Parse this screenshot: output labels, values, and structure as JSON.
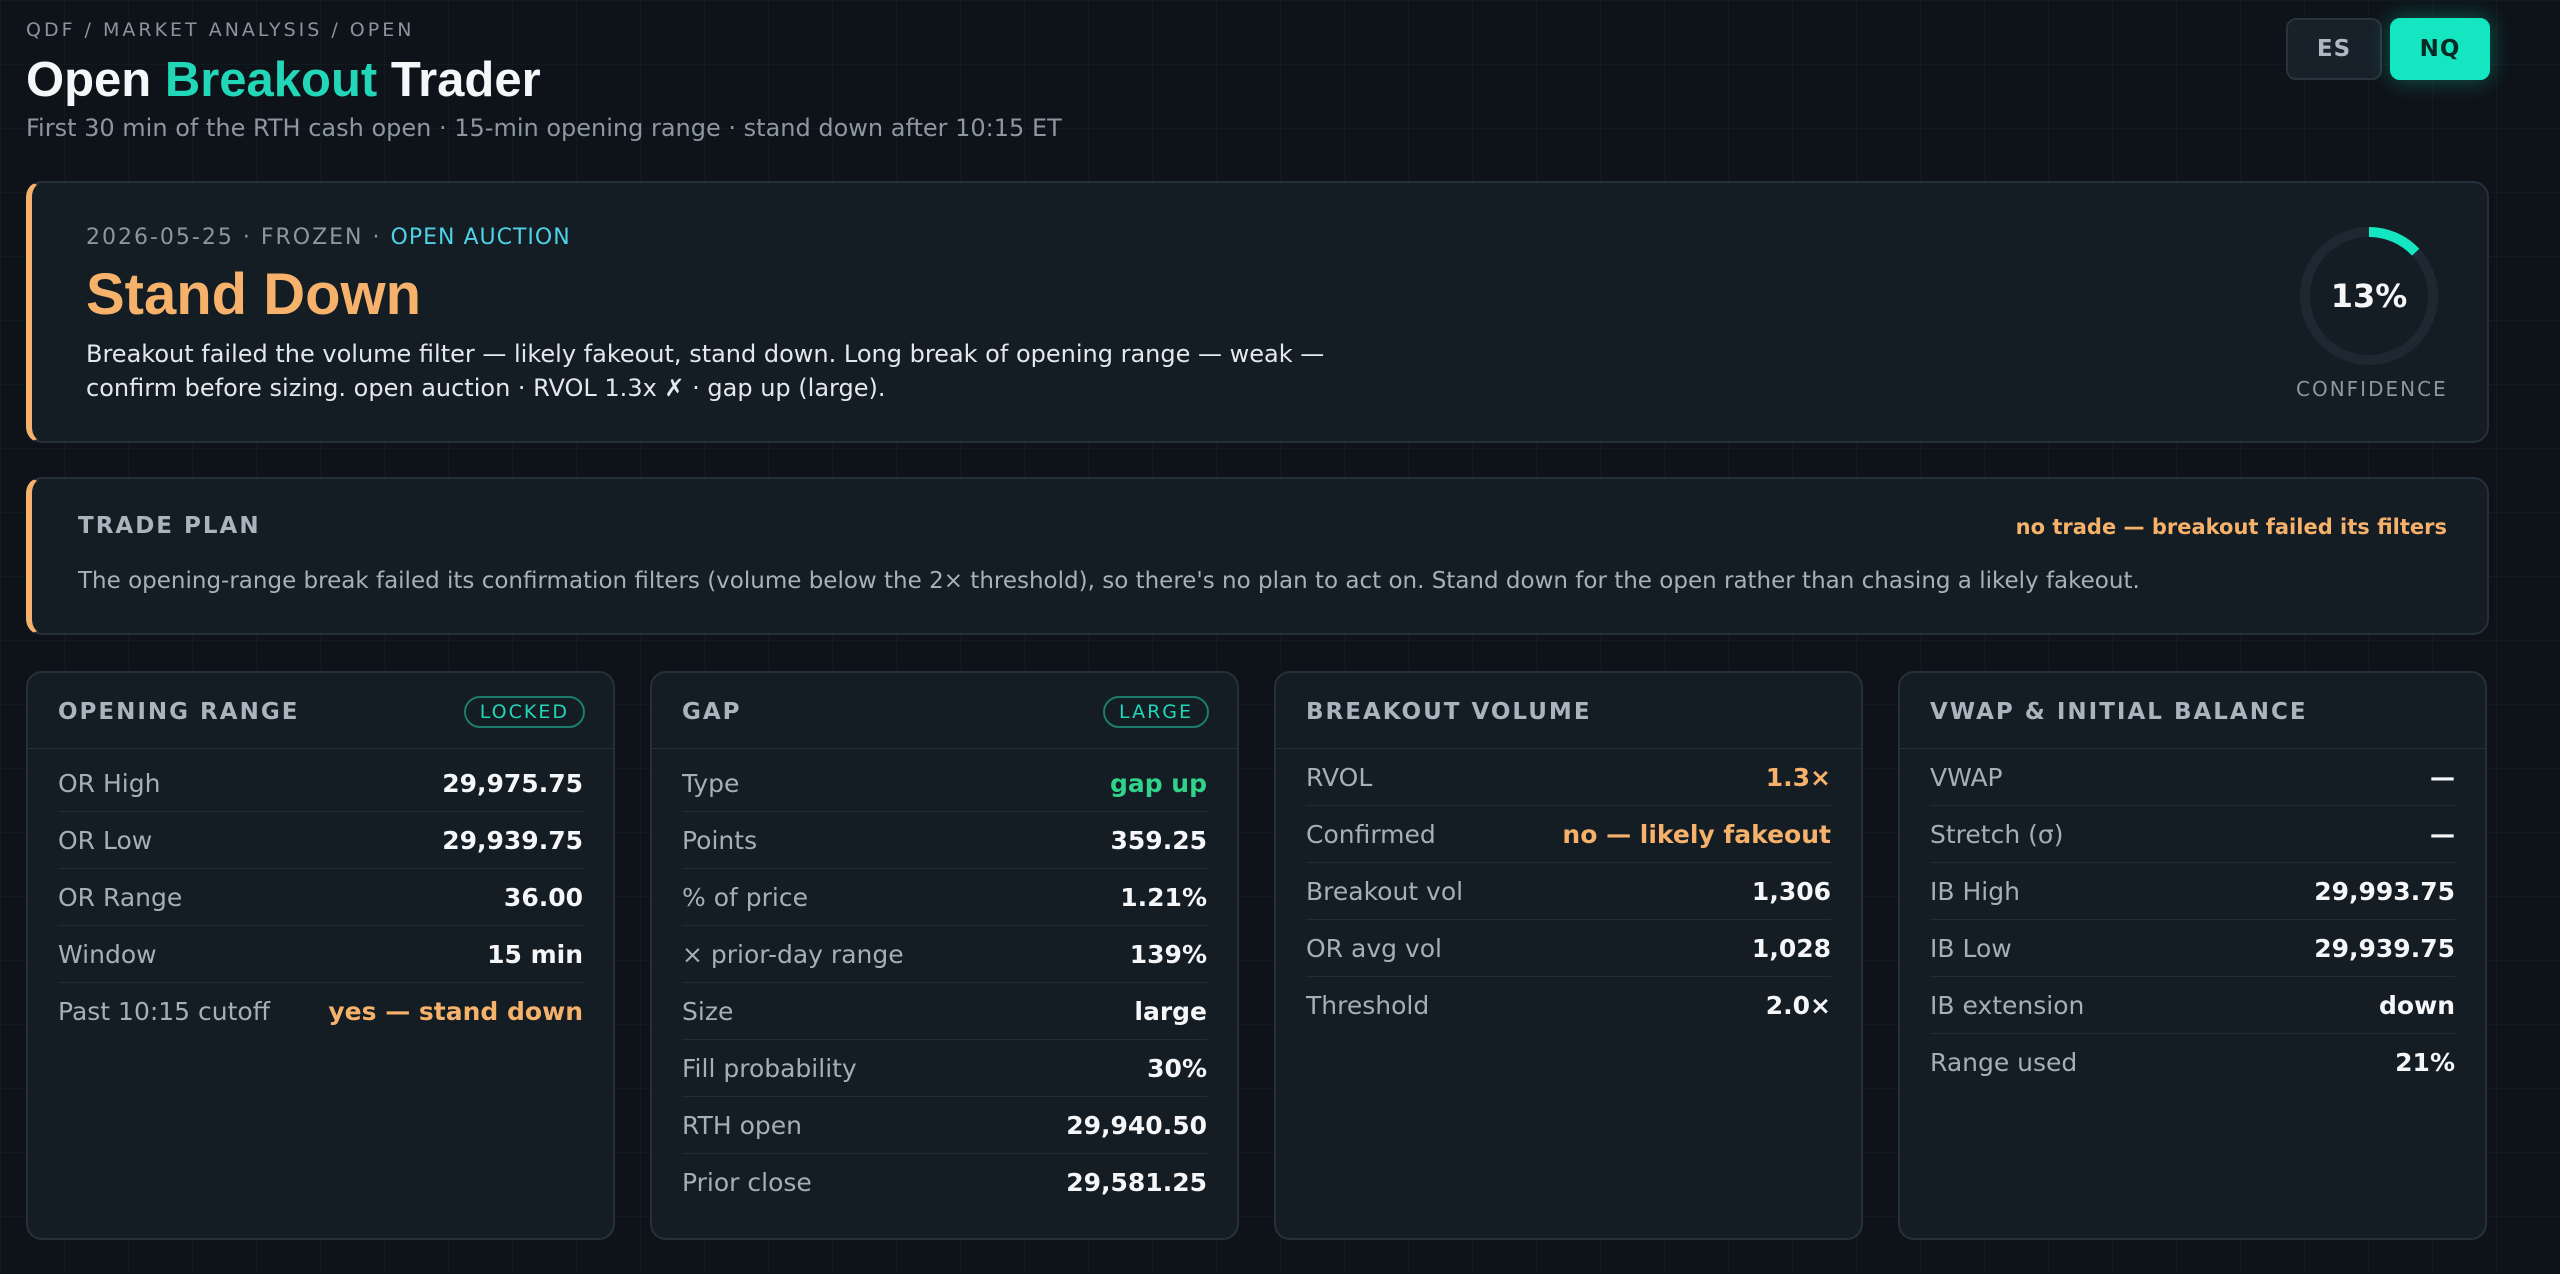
{
  "header": {
    "breadcrumb": "QDF / MARKET ANALYSIS / OPEN",
    "title_pre": "Open ",
    "title_accent": "Breakout",
    "title_post": " Trader",
    "subtitle": "First 30 min of the RTH cash open · 15-min opening range · stand down after 10:15 ET"
  },
  "symbols": {
    "items": [
      "ES",
      "NQ"
    ],
    "active": "NQ"
  },
  "signal": {
    "meta_date": "2026-05-25 · FROZEN ·",
    "meta_phase": "OPEN AUCTION",
    "verdict": "Stand Down",
    "description": "Breakout failed the volume filter — likely fakeout, stand down. Long break of opening range — weak — confirm before sizing. open auction · RVOL 1.3x ✗ · gap up (large).",
    "confidence_value": 0.13,
    "confidence_text": "13%",
    "confidence_label": "CONFIDENCE"
  },
  "plan": {
    "title": "TRADE PLAN",
    "status": "no trade — breakout failed its filters",
    "body": "The opening-range break failed its confirmation filters (volume below the 2× threshold), so there's no plan to act on. Stand down for the open rather than chasing a likely fakeout."
  },
  "panels": {
    "opening_range": {
      "title": "OPENING RANGE",
      "badge": "LOCKED",
      "rows": [
        {
          "k": "OR High",
          "v": "29,975.75"
        },
        {
          "k": "OR Low",
          "v": "29,939.75"
        },
        {
          "k": "OR Range",
          "v": "36.00"
        },
        {
          "k": "Window",
          "v": "15 min"
        },
        {
          "k": "Past 10:15 cutoff",
          "v": "yes — stand down"
        }
      ]
    },
    "gap": {
      "title": "GAP",
      "badge": "LARGE",
      "rows": [
        {
          "k": "Type",
          "v": "gap up"
        },
        {
          "k": "Points",
          "v": "359.25"
        },
        {
          "k": "% of price",
          "v": "1.21%"
        },
        {
          "k": "× prior-day range",
          "v": "139%"
        },
        {
          "k": "Size",
          "v": "large"
        },
        {
          "k": "Fill probability",
          "v": "30%"
        },
        {
          "k": "RTH open",
          "v": "29,940.50"
        },
        {
          "k": "Prior close",
          "v": "29,581.25"
        }
      ]
    },
    "breakout_volume": {
      "title": "BREAKOUT VOLUME",
      "rows": [
        {
          "k": "RVOL",
          "v": "1.3×"
        },
        {
          "k": "Confirmed",
          "v": "no — likely fakeout"
        },
        {
          "k": "Breakout vol",
          "v": "1,306"
        },
        {
          "k": "OR avg vol",
          "v": "1,028"
        },
        {
          "k": "Threshold",
          "v": "2.0×"
        }
      ]
    },
    "vwap_ib": {
      "title": "VWAP & INITIAL BALANCE",
      "rows": [
        {
          "k": "VWAP",
          "v": "—"
        },
        {
          "k": "Stretch (σ)",
          "v": "—"
        },
        {
          "k": "IB High",
          "v": "29,993.75"
        },
        {
          "k": "IB Low",
          "v": "29,939.75"
        },
        {
          "k": "IB extension",
          "v": "down"
        },
        {
          "k": "Range used",
          "v": "21%"
        }
      ]
    }
  },
  "colors": {
    "accent": "#22d6b8",
    "warn": "#f6b26b",
    "good": "#2fd48a",
    "cyan": "#4fd1e6"
  }
}
